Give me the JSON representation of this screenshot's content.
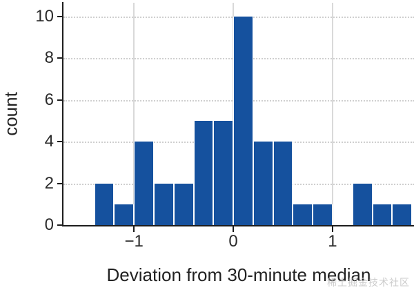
{
  "figure": {
    "watermark_text": "稀土掘金技术社区"
  },
  "chart_data": {
    "type": "bar",
    "subtype": "histogram",
    "title": "",
    "xlabel": "Deviation from 30-minute median",
    "ylabel": "count",
    "bin_edges": [
      -1.4,
      -1.2,
      -1.0,
      -0.8,
      -0.6,
      -0.4,
      -0.2,
      0.0,
      0.2,
      0.4,
      0.6,
      0.8,
      1.0,
      1.2,
      1.4,
      1.6,
      1.8
    ],
    "values": [
      2,
      1,
      4,
      2,
      2,
      5,
      5,
      10,
      4,
      4,
      1,
      1,
      0,
      2,
      1,
      1
    ],
    "xticks": [
      -1,
      0,
      1
    ],
    "xtick_labels": [
      "−1",
      "0",
      "1"
    ],
    "yticks": [
      0,
      2,
      4,
      6,
      8,
      10
    ],
    "ytick_labels": [
      "0",
      "2",
      "4",
      "6",
      "8",
      "10"
    ],
    "xlim": [
      -1.71,
      1.82
    ],
    "ylim": [
      0,
      10.66
    ],
    "bar_color": "#15519e",
    "bar_edge_color": "#ffffff",
    "grid": {
      "vertical": "solid",
      "horizontal": "dotted"
    },
    "legend_position": "none"
  }
}
